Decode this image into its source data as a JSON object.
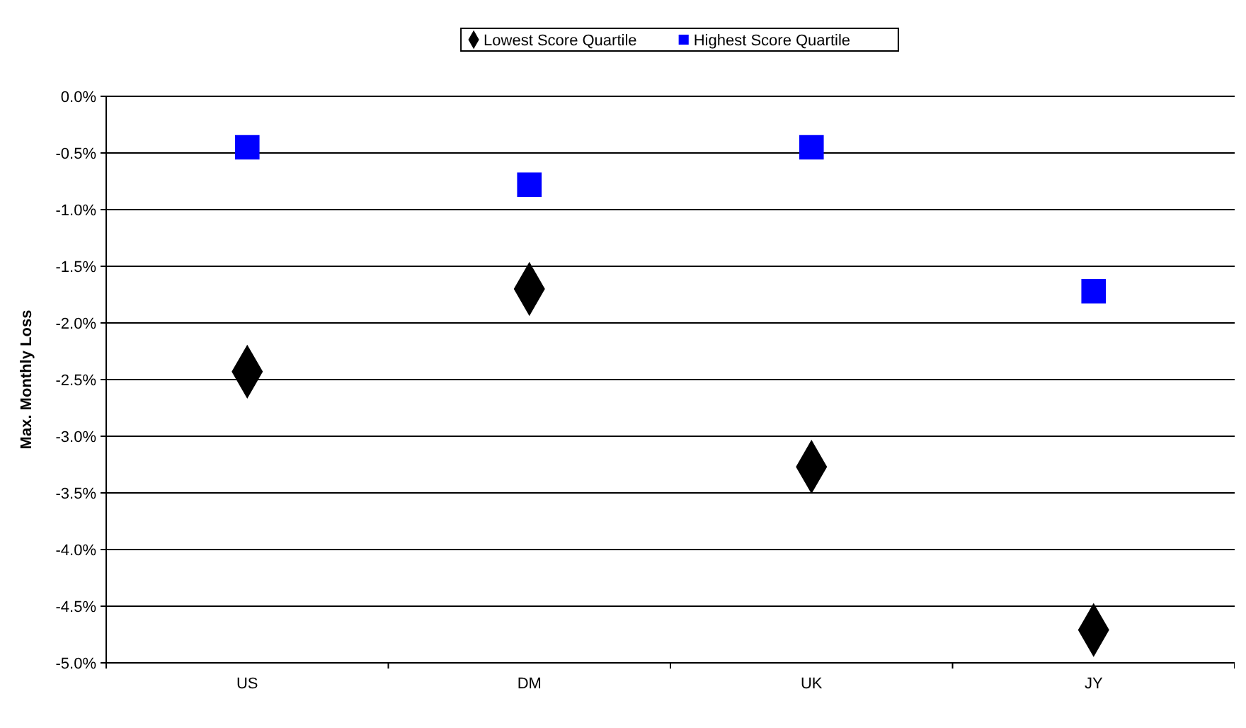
{
  "chart_data": {
    "type": "scatter",
    "ylabel": "Max. Monthly Loss",
    "categories": [
      "US",
      "DM",
      "UK",
      "JY"
    ],
    "series": [
      {
        "name": "Lowest Score Quartile",
        "color": "#000000",
        "marker": "diamond",
        "values": [
          -2.43,
          -1.7,
          -3.27,
          -4.71
        ]
      },
      {
        "name": "Highest Score Quartile",
        "color": "#0000ff",
        "marker": "square",
        "values": [
          -0.45,
          -0.78,
          -0.45,
          -1.72
        ]
      }
    ],
    "ylim": [
      -5,
      0
    ],
    "yticks": [
      {
        "value": 0,
        "label": "0.0%"
      },
      {
        "value": -0.5,
        "label": "-0.5%"
      },
      {
        "value": -1,
        "label": "-1.0%"
      },
      {
        "value": -1.5,
        "label": "-1.5%"
      },
      {
        "value": -2,
        "label": "-2.0%"
      },
      {
        "value": -2.5,
        "label": "-2.5%"
      },
      {
        "value": -3,
        "label": "-3.0%"
      },
      {
        "value": -3.5,
        "label": "-3.5%"
      },
      {
        "value": -4,
        "label": "-4.0%"
      },
      {
        "value": -4.5,
        "label": "-4.5%"
      },
      {
        "value": -5,
        "label": "-5.0%"
      }
    ],
    "grid": "y",
    "legend": "top"
  }
}
